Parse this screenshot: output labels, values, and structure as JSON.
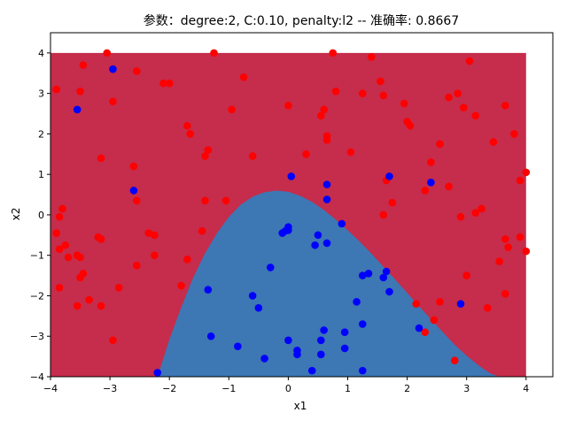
{
  "chart_data": {
    "type": "scatter",
    "title": "参数：degree:2, C:0.10, penalty:l2 -- 准确率: 0.8667",
    "xlabel": "x1",
    "ylabel": "x2",
    "xlim": [
      -4,
      4.45
    ],
    "ylim": [
      -4,
      4.5
    ],
    "xticks": [
      -4,
      -3,
      -2,
      -1,
      0,
      1,
      2,
      3,
      4
    ],
    "yticks": [
      -4,
      -3,
      -2,
      -1,
      0,
      1,
      2,
      3,
      4
    ],
    "grid": false,
    "legend": "none",
    "decision_regions": {
      "x_range": [
        -4,
        4
      ],
      "y_range": [
        -4,
        4
      ],
      "outer_region_color": "#c62c4b",
      "inner_region_color": "#3d77b4",
      "inner_boundary": {
        "x": [
          -2.2,
          -2.0,
          -1.8,
          -1.6,
          -1.4,
          -1.2,
          -1.0,
          -0.8,
          -0.6,
          -0.4,
          -0.2,
          0.0,
          0.2,
          0.4,
          0.6,
          0.8,
          1.0,
          1.2,
          1.4,
          1.6,
          1.8,
          2.0,
          2.2,
          2.4,
          2.6,
          2.8,
          3.0,
          3.2,
          3.4,
          3.55
        ],
        "y": [
          -4.0,
          -3.08,
          -2.28,
          -1.55,
          -0.95,
          -0.45,
          -0.05,
          0.25,
          0.45,
          0.56,
          0.6,
          0.57,
          0.47,
          0.32,
          0.12,
          -0.12,
          -0.38,
          -0.66,
          -0.96,
          -1.28,
          -1.6,
          -1.93,
          -2.26,
          -2.58,
          -2.9,
          -3.21,
          -3.48,
          -3.72,
          -3.92,
          -4.0
        ]
      }
    },
    "series": [
      {
        "color": "#ff0000",
        "points": [
          [
            -3.9,
            3.1
          ],
          [
            -3.05,
            4.0
          ],
          [
            -1.25,
            4.0
          ],
          [
            -3.45,
            3.7
          ],
          [
            -3.5,
            3.05
          ],
          [
            -2.95,
            2.8
          ],
          [
            -2.55,
            3.55
          ],
          [
            -2.1,
            3.25
          ],
          [
            -2.0,
            3.25
          ],
          [
            -0.75,
            3.4
          ],
          [
            -1.7,
            2.2
          ],
          [
            -1.65,
            2.0
          ],
          [
            -0.95,
            2.6
          ],
          [
            0.0,
            2.7
          ],
          [
            0.55,
            2.45
          ],
          [
            0.6,
            2.6
          ],
          [
            0.65,
            1.85
          ],
          [
            0.65,
            1.95
          ],
          [
            0.8,
            3.05
          ],
          [
            0.75,
            4.0
          ],
          [
            1.4,
            3.9
          ],
          [
            1.25,
            3.0
          ],
          [
            1.55,
            3.3
          ],
          [
            1.6,
            2.95
          ],
          [
            1.95,
            2.75
          ],
          [
            2.0,
            2.3
          ],
          [
            2.05,
            2.2
          ],
          [
            2.55,
            1.75
          ],
          [
            2.4,
            1.3
          ],
          [
            2.7,
            2.9
          ],
          [
            2.85,
            3.0
          ],
          [
            2.95,
            2.65
          ],
          [
            3.05,
            3.8
          ],
          [
            3.15,
            2.45
          ],
          [
            3.45,
            1.8
          ],
          [
            3.65,
            2.7
          ],
          [
            3.8,
            2.0
          ],
          [
            3.9,
            0.85
          ],
          [
            4.0,
            1.05
          ],
          [
            -3.15,
            1.4
          ],
          [
            -2.6,
            1.2
          ],
          [
            -1.4,
            1.45
          ],
          [
            -1.35,
            1.6
          ],
          [
            -0.6,
            1.45
          ],
          [
            0.3,
            1.5
          ],
          [
            1.05,
            1.55
          ],
          [
            1.65,
            0.85
          ],
          [
            1.75,
            0.3
          ],
          [
            1.6,
            0.0
          ],
          [
            2.3,
            0.6
          ],
          [
            2.7,
            0.7
          ],
          [
            2.9,
            -0.05
          ],
          [
            3.15,
            0.05
          ],
          [
            3.25,
            0.15
          ],
          [
            -3.9,
            -0.45
          ],
          [
            -3.85,
            -0.05
          ],
          [
            -3.8,
            0.15
          ],
          [
            -3.85,
            -0.85
          ],
          [
            -3.75,
            -0.75
          ],
          [
            -3.7,
            -1.05
          ],
          [
            -3.55,
            -1.0
          ],
          [
            -3.5,
            -1.05
          ],
          [
            -3.5,
            -1.55
          ],
          [
            -3.45,
            -1.45
          ],
          [
            -3.85,
            -1.8
          ],
          [
            -3.55,
            -2.25
          ],
          [
            -3.35,
            -2.1
          ],
          [
            -3.15,
            -0.6
          ],
          [
            -3.15,
            -2.25
          ],
          [
            -2.85,
            -1.8
          ],
          [
            -2.55,
            0.35
          ],
          [
            -2.35,
            -0.45
          ],
          [
            -2.25,
            -0.5
          ],
          [
            -2.25,
            -1.0
          ],
          [
            -2.55,
            -1.25
          ],
          [
            -1.7,
            -1.1
          ],
          [
            -1.8,
            -1.75
          ],
          [
            -1.4,
            0.35
          ],
          [
            -1.45,
            -0.4
          ],
          [
            -1.05,
            0.35
          ],
          [
            -2.95,
            -3.1
          ],
          [
            2.15,
            -2.2
          ],
          [
            2.3,
            -2.9
          ],
          [
            2.45,
            -2.6
          ],
          [
            2.55,
            -2.15
          ],
          [
            2.8,
            -3.6
          ],
          [
            3.0,
            -1.5
          ],
          [
            3.35,
            -2.3
          ],
          [
            3.55,
            -1.15
          ],
          [
            3.65,
            -0.6
          ],
          [
            3.7,
            -0.8
          ],
          [
            3.65,
            -1.95
          ],
          [
            3.9,
            -0.55
          ],
          [
            4.0,
            -0.9
          ],
          [
            -3.2,
            -0.55
          ]
        ]
      },
      {
        "color": "#0000ff",
        "points": [
          [
            -2.95,
            3.6
          ],
          [
            -3.55,
            2.6
          ],
          [
            -2.6,
            0.6
          ],
          [
            1.7,
            0.95
          ],
          [
            2.4,
            0.8
          ],
          [
            0.65,
            0.75
          ],
          [
            0.05,
            0.95
          ],
          [
            0.65,
            0.38
          ],
          [
            -0.05,
            -0.4
          ],
          [
            -0.1,
            -0.45
          ],
          [
            0.0,
            -0.3
          ],
          [
            0.0,
            -0.38
          ],
          [
            0.45,
            -0.75
          ],
          [
            0.5,
            -0.5
          ],
          [
            0.65,
            -0.7
          ],
          [
            0.9,
            -0.22
          ],
          [
            -0.3,
            -1.3
          ],
          [
            -0.6,
            -2.0
          ],
          [
            -0.5,
            -2.3
          ],
          [
            -1.35,
            -1.85
          ],
          [
            -1.3,
            -3.0
          ],
          [
            -0.85,
            -3.25
          ],
          [
            -0.4,
            -3.55
          ],
          [
            0.0,
            -3.1
          ],
          [
            0.15,
            -3.35
          ],
          [
            0.15,
            -3.45
          ],
          [
            0.4,
            -3.85
          ],
          [
            0.55,
            -3.1
          ],
          [
            0.6,
            -2.85
          ],
          [
            0.55,
            -3.45
          ],
          [
            0.95,
            -2.9
          ],
          [
            0.95,
            -3.3
          ],
          [
            1.15,
            -2.15
          ],
          [
            1.25,
            -1.5
          ],
          [
            1.35,
            -1.45
          ],
          [
            1.25,
            -2.7
          ],
          [
            1.25,
            -3.85
          ],
          [
            1.6,
            -1.55
          ],
          [
            1.65,
            -1.4
          ],
          [
            1.7,
            -1.9
          ],
          [
            2.2,
            -2.8
          ],
          [
            2.9,
            -2.2
          ],
          [
            -2.2,
            -3.9
          ]
        ]
      }
    ]
  }
}
